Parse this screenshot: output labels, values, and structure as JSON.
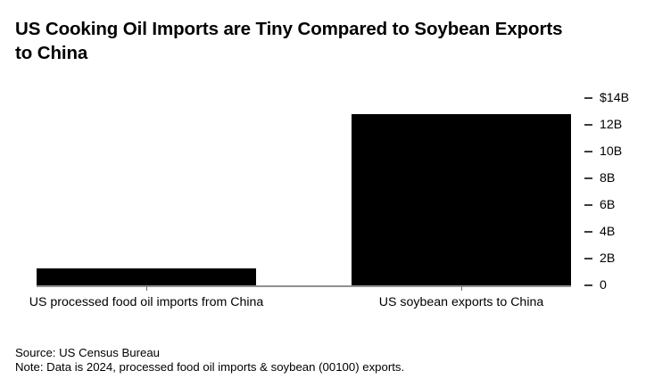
{
  "title": {
    "line1": "US Cooking Oil Imports are Tiny Compared to Soybean Exports",
    "line2": "to China"
  },
  "footer": {
    "source": "Source: US Census Bureau",
    "note": "Note: Data is 2024, processed food oil imports & soybean (00100) exports."
  },
  "colors": {
    "bar": "#000000",
    "axis_line": "#919191",
    "x_tick": "#6e6e6e",
    "y_tick_dash": "#3d3d3d",
    "text": "#000000",
    "background": "#ffffff"
  },
  "chart_data": {
    "type": "bar",
    "title": "US Cooking Oil Imports are Tiny Compared to Soybean Exports to China",
    "categories": [
      "US processed food oil imports from China",
      "US soybean exports to China"
    ],
    "values": [
      1.25,
      12.8
    ],
    "unit": "billion USD",
    "xlabel": "",
    "ylabel": "",
    "ylim": [
      0,
      14
    ],
    "yticks": [
      {
        "value": 0,
        "label": "0"
      },
      {
        "value": 2,
        "label": "2B"
      },
      {
        "value": 4,
        "label": "4B"
      },
      {
        "value": 6,
        "label": "6B"
      },
      {
        "value": 8,
        "label": "8B"
      },
      {
        "value": 10,
        "label": "10B"
      },
      {
        "value": 12,
        "label": "12B"
      },
      {
        "value": 14,
        "label": "$14B"
      }
    ],
    "grid": false,
    "legend": false,
    "tick_labels_side": "right",
    "bar_color": "#000000",
    "source": "US Census Bureau",
    "note": "Data is 2024, processed food oil imports & soybean (00100) exports."
  }
}
